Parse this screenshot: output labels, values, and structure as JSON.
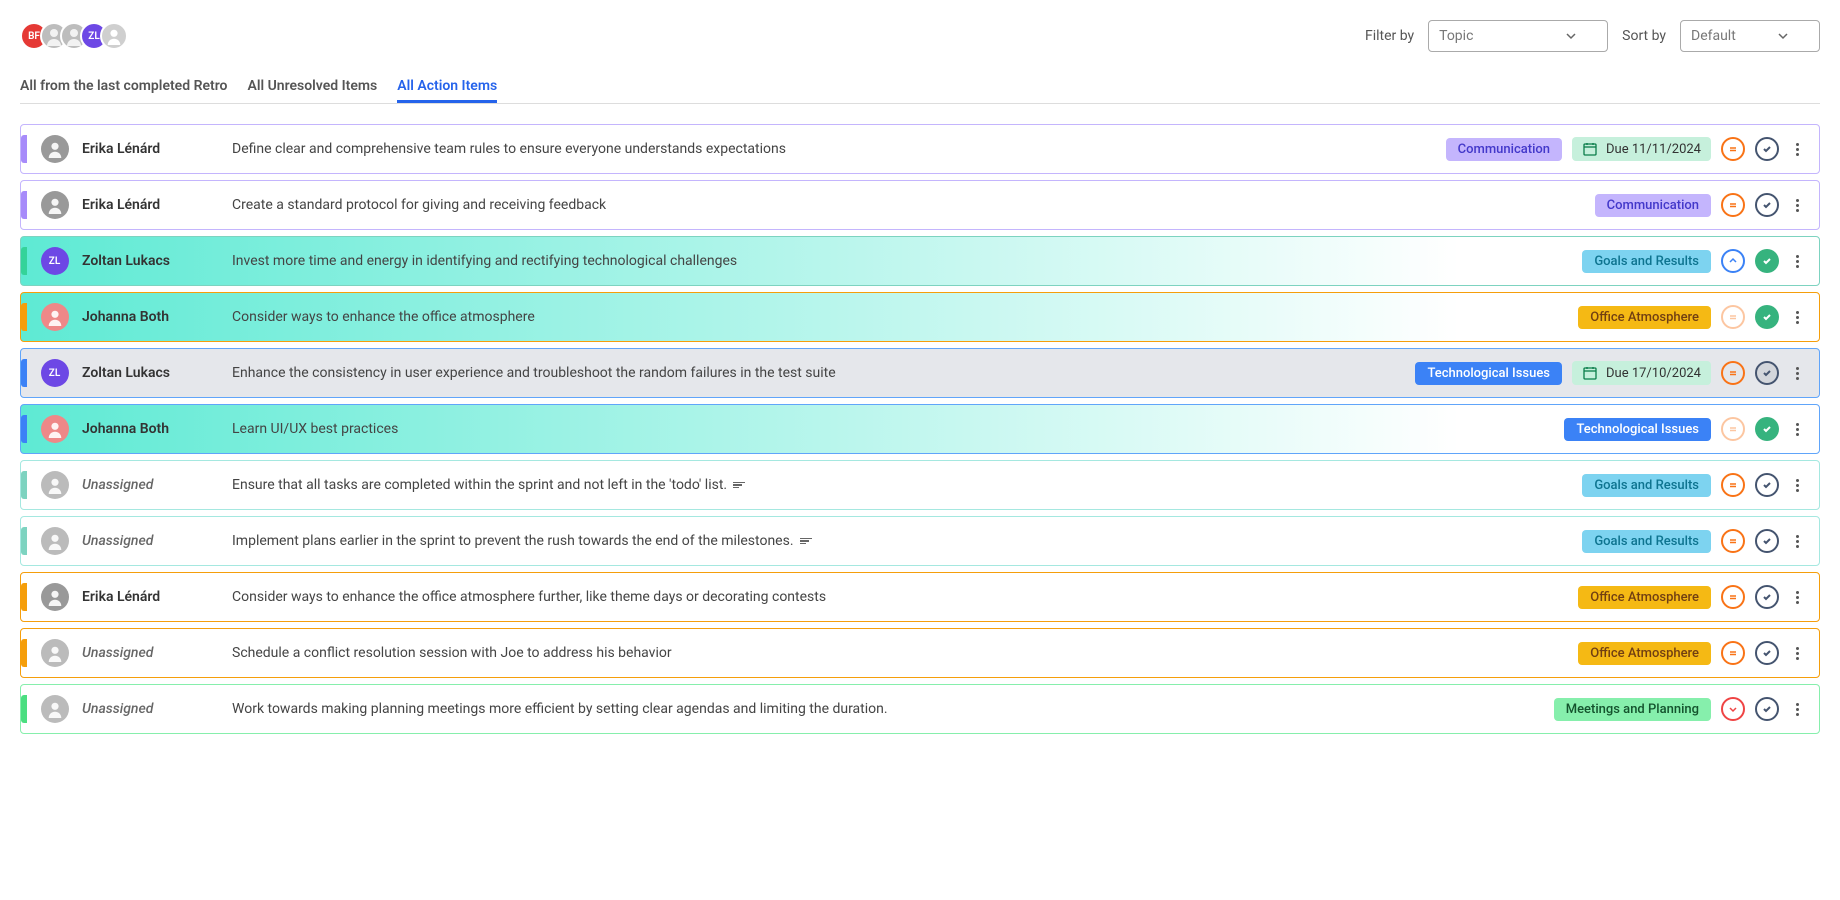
{
  "header_avatars": [
    {
      "initials": "BF",
      "bg": "#e53935",
      "type": "initials"
    },
    {
      "initials": "",
      "bg": "#bdbdbd",
      "type": "photo"
    },
    {
      "initials": "",
      "bg": "#bdbdbd",
      "type": "photo"
    },
    {
      "initials": "ZL",
      "bg": "#6d48e5",
      "type": "initials"
    },
    {
      "initials": "",
      "bg": "#cfcfcf",
      "type": "blank"
    }
  ],
  "filters": {
    "filter_by_label": "Filter by",
    "filter_by_value": "Topic",
    "sort_by_label": "Sort by",
    "sort_by_value": "Default"
  },
  "tabs": [
    {
      "label": "All from the last completed Retro",
      "active": false
    },
    {
      "label": "All Unresolved Items",
      "active": false
    },
    {
      "label": "All Action Items",
      "active": true
    }
  ],
  "colors": {
    "border_purple": "#c4b5fd",
    "stripe_purple": "#a78bfa",
    "border_teal": "#7dd3c0",
    "stripe_green": "#34d399",
    "border_amber": "#f59e0b",
    "stripe_amber": "#f59e0b",
    "border_blue": "#60a5fa",
    "stripe_blue": "#3b82f6",
    "border_lightcyan": "#a5e8e0",
    "stripe_lightcyan": "#7dd3c0",
    "border_mint": "#86efac",
    "stripe_mint": "#4ade80",
    "tag_comm_bg": "#c4b5fd",
    "tag_comm_fg": "#4338ca",
    "tag_goals_bg": "#7dd3f0",
    "tag_goals_fg": "#0e7490",
    "tag_office_bg": "#f5b914",
    "tag_office_fg": "#713f12",
    "tag_tech_bg": "#3b82f6",
    "tag_tech_fg": "#ffffff",
    "tag_meet_bg": "#86efac",
    "tag_meet_fg": "#14532d",
    "priority_orange": "#f97316",
    "priority_blue": "#3b82f6",
    "priority_red": "#ef4444",
    "check_gray": "#44546f",
    "check_green_bg": "#36b37e",
    "grad_from": "#5eead4",
    "grad_to": "#ffffff",
    "grad_bg_gray": "#e5e7eb"
  },
  "items": [
    {
      "assignee": "Erika Lénárd",
      "unassigned": false,
      "avatar": {
        "type": "photo",
        "bg": "#999",
        "initials": ""
      },
      "desc": "Define clear and comprehensive team rules to ensure everyone understands expectations",
      "tag": {
        "text": "Communication",
        "bg": "tag_comm_bg",
        "fg": "tag_comm_fg"
      },
      "due": "Due 11/11/2024",
      "border": "border_purple",
      "stripe": "stripe_purple",
      "bg": "plain",
      "priority": "orange",
      "check": "gray",
      "has_sort": false
    },
    {
      "assignee": "Erika Lénárd",
      "unassigned": false,
      "avatar": {
        "type": "photo",
        "bg": "#999",
        "initials": ""
      },
      "desc": "Create a standard protocol for giving and receiving feedback",
      "tag": {
        "text": "Communication",
        "bg": "tag_comm_bg",
        "fg": "tag_comm_fg"
      },
      "due": null,
      "border": "border_purple",
      "stripe": "stripe_purple",
      "bg": "plain",
      "priority": "orange",
      "check": "gray",
      "has_sort": false
    },
    {
      "assignee": "Zoltan Lukacs",
      "unassigned": false,
      "avatar": {
        "type": "initials",
        "bg": "#6d48e5",
        "initials": "ZL"
      },
      "desc": "Invest more time and energy in identifying and rectifying technological challenges",
      "tag": {
        "text": "Goals and Results",
        "bg": "tag_goals_bg",
        "fg": "tag_goals_fg"
      },
      "due": null,
      "border": "border_teal",
      "stripe": "stripe_green",
      "bg": "grad",
      "priority": "blue",
      "check": "green",
      "has_sort": false
    },
    {
      "assignee": "Johanna Both",
      "unassigned": false,
      "avatar": {
        "type": "photo",
        "bg": "#e88",
        "initials": ""
      },
      "desc": "Consider ways to enhance the office atmosphere",
      "tag": {
        "text": "Office Atmosphere",
        "bg": "tag_office_bg",
        "fg": "tag_office_fg"
      },
      "due": null,
      "border": "border_amber",
      "stripe": "stripe_amber",
      "bg": "grad",
      "priority": "orange_faded",
      "check": "green",
      "has_sort": false
    },
    {
      "assignee": "Zoltan Lukacs",
      "unassigned": false,
      "avatar": {
        "type": "initials",
        "bg": "#6d48e5",
        "initials": "ZL"
      },
      "desc": "Enhance the consistency in user experience and troubleshoot the random failures in the test suite",
      "tag": {
        "text": "Technological Issues",
        "bg": "tag_tech_bg",
        "fg": "tag_tech_fg"
      },
      "due": "Due 17/10/2024",
      "border": "border_blue",
      "stripe": "stripe_blue",
      "bg": "gray",
      "priority": "orange",
      "check": "gray_filled",
      "has_sort": false
    },
    {
      "assignee": "Johanna Both",
      "unassigned": false,
      "avatar": {
        "type": "photo",
        "bg": "#e88",
        "initials": ""
      },
      "desc": "Learn UI/UX best practices",
      "tag": {
        "text": "Technological Issues",
        "bg": "tag_tech_bg",
        "fg": "tag_tech_fg"
      },
      "due": null,
      "border": "border_blue",
      "stripe": "stripe_blue",
      "bg": "grad",
      "priority": "orange_faded",
      "check": "green",
      "has_sort": false
    },
    {
      "assignee": "Unassigned",
      "unassigned": true,
      "avatar": {
        "type": "blank",
        "bg": "#bbb",
        "initials": ""
      },
      "desc": "Ensure that all tasks are completed within the sprint and not left in the 'todo' list.",
      "tag": {
        "text": "Goals and Results",
        "bg": "tag_goals_bg",
        "fg": "tag_goals_fg"
      },
      "due": null,
      "border": "border_lightcyan",
      "stripe": "stripe_lightcyan",
      "bg": "plain",
      "priority": "orange",
      "check": "gray",
      "has_sort": true
    },
    {
      "assignee": "Unassigned",
      "unassigned": true,
      "avatar": {
        "type": "blank",
        "bg": "#bbb",
        "initials": ""
      },
      "desc": "Implement plans earlier in the sprint to prevent the rush towards the end of the milestones.",
      "tag": {
        "text": "Goals and Results",
        "bg": "tag_goals_bg",
        "fg": "tag_goals_fg"
      },
      "due": null,
      "border": "border_lightcyan",
      "stripe": "stripe_lightcyan",
      "bg": "plain",
      "priority": "orange",
      "check": "gray",
      "has_sort": true
    },
    {
      "assignee": "Erika Lénárd",
      "unassigned": false,
      "avatar": {
        "type": "photo",
        "bg": "#999",
        "initials": ""
      },
      "desc": "Consider ways to enhance the office atmosphere further, like theme days or decorating contests",
      "tag": {
        "text": "Office Atmosphere",
        "bg": "tag_office_bg",
        "fg": "tag_office_fg"
      },
      "due": null,
      "border": "border_amber",
      "stripe": "stripe_amber",
      "bg": "plain",
      "priority": "orange",
      "check": "gray",
      "has_sort": false
    },
    {
      "assignee": "Unassigned",
      "unassigned": true,
      "avatar": {
        "type": "blank",
        "bg": "#bbb",
        "initials": ""
      },
      "desc": "Schedule a conflict resolution session with Joe to address his behavior",
      "tag": {
        "text": "Office Atmosphere",
        "bg": "tag_office_bg",
        "fg": "tag_office_fg"
      },
      "due": null,
      "border": "border_amber",
      "stripe": "stripe_amber",
      "bg": "plain",
      "priority": "orange",
      "check": "gray",
      "has_sort": false
    },
    {
      "assignee": "Unassigned",
      "unassigned": true,
      "avatar": {
        "type": "blank",
        "bg": "#bbb",
        "initials": ""
      },
      "desc": "Work towards making planning meetings more efficient by setting clear agendas and limiting the duration.",
      "tag": {
        "text": "Meetings and Planning",
        "bg": "tag_meet_bg",
        "fg": "tag_meet_fg"
      },
      "due": null,
      "border": "border_mint",
      "stripe": "stripe_mint",
      "bg": "plain",
      "priority": "red",
      "check": "gray",
      "has_sort": false
    }
  ]
}
